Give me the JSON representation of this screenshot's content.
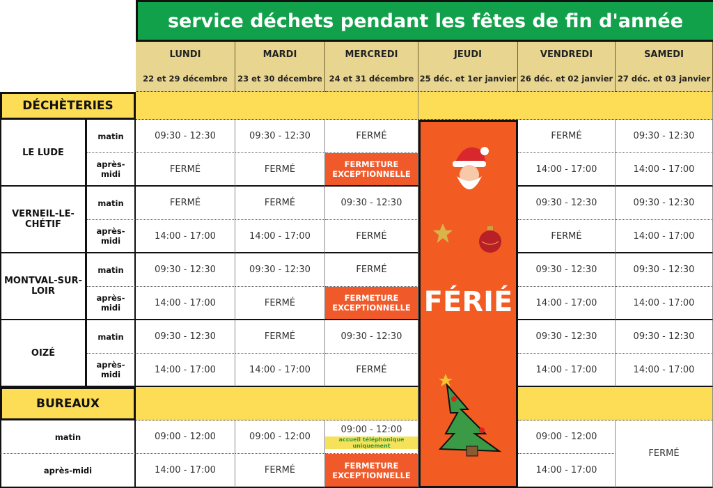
{
  "title": "service déchets pendant les fêtes de fin d'année",
  "days": [
    {
      "day": "LUNDI",
      "dates": "22 et 29 décembre"
    },
    {
      "day": "MARDI",
      "dates": "23 et 30 décembre"
    },
    {
      "day": "MERCREDI",
      "dates": "24 et 31 décembre"
    },
    {
      "day": "JEUDI",
      "dates": "25 déc. et 1er janvier"
    },
    {
      "day": "VENDREDI",
      "dates": "26 déc. et 02 janvier"
    },
    {
      "day": "SAMEDI",
      "dates": "27 déc. et 03 janvier"
    }
  ],
  "decheteries_label": "DÉCHÈTERIES",
  "bureaux_label": "BUREAUX",
  "matin": "matin",
  "apres_midi": "après-midi",
  "ferie": "FÉRIÉ",
  "sites": [
    {
      "name": "LE LUDE",
      "matin": [
        "09:30 - 12:30",
        "09:30 - 12:30",
        "FERMÉ",
        "",
        "FERMÉ",
        "09:30 - 12:30"
      ],
      "apres": [
        "FERMÉ",
        "FERMÉ",
        "FERMETURE EXCEPTIONNELLE",
        "",
        "14:00 - 17:00",
        "14:00 - 17:00"
      ]
    },
    {
      "name": "VERNEIL-LE-CHÉTIF",
      "matin": [
        "FERMÉ",
        "FERMÉ",
        "09:30 - 12:30",
        "",
        "09:30 - 12:30",
        "09:30 - 12:30"
      ],
      "apres": [
        "14:00 - 17:00",
        "14:00 - 17:00",
        "FERMÉ",
        "",
        "FERMÉ",
        "14:00 - 17:00"
      ]
    },
    {
      "name": "MONTVAL-SUR-LOIR",
      "matin": [
        "09:30 - 12:30",
        "09:30 - 12:30",
        "FERMÉ",
        "",
        "09:30 - 12:30",
        "09:30 - 12:30"
      ],
      "apres": [
        "14:00 - 17:00",
        "FERMÉ",
        "FERMETURE EXCEPTIONNELLE",
        "",
        "14:00 - 17:00",
        "14:00 - 17:00"
      ]
    },
    {
      "name": "OIZÉ",
      "matin": [
        "09:30 - 12:30",
        "FERMÉ",
        "09:30 - 12:30",
        "",
        "09:30 - 12:30",
        "09:30 - 12:30"
      ],
      "apres": [
        "14:00 - 17:00",
        "14:00 - 17:00",
        "FERMÉ",
        "",
        "14:00 - 17:00",
        "14:00 - 17:00"
      ]
    }
  ],
  "bureaux": {
    "matin": [
      "09:00 - 12:00",
      "09:00 - 12:00",
      "09:00 - 12:00",
      "",
      "09:00 - 12:00"
    ],
    "apres": [
      "14:00 - 17:00",
      "FERMÉ",
      "FERMETURE EXCEPTIONNELLE",
      "",
      "14:00 - 17:00"
    ],
    "samedi": "FERMÉ",
    "note": "accueil téléphonique uniquement"
  },
  "colors": {
    "title_bg": "#12a14b",
    "header_bg": "#e8d690",
    "section_bg": "#fddd55",
    "closure_bg": "#f0592a",
    "holiday_bg": "#f25b22"
  }
}
